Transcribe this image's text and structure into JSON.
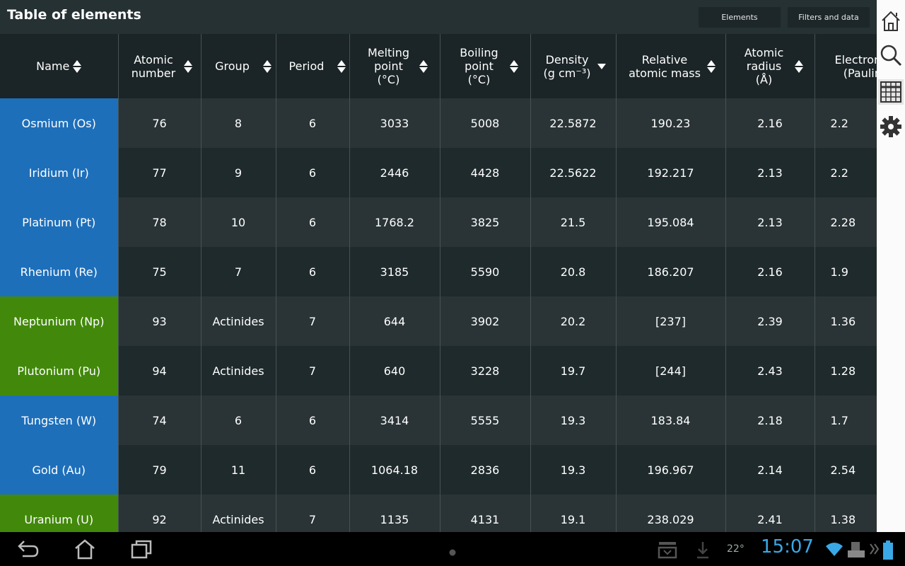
{
  "app": {
    "title": "Table of elements"
  },
  "toolbar": {
    "elements_label": "Elements",
    "filters_label": "Filters and data"
  },
  "side_icons": [
    "home-icon",
    "search-icon",
    "table-icon",
    "settings-icon"
  ],
  "table": {
    "columns": [
      {
        "label": "Name",
        "sort": "both"
      },
      {
        "label": "Atomic number",
        "sort": "both"
      },
      {
        "label": "Group",
        "sort": "both"
      },
      {
        "label": "Period",
        "sort": "both"
      },
      {
        "label": "Melting point (°C)",
        "sort": "both"
      },
      {
        "label": "Boiling point (°C)",
        "sort": "both"
      },
      {
        "label": "Density (g cm⁻³)",
        "sort": "desc"
      },
      {
        "label": "Relative atomic mass",
        "sort": "both"
      },
      {
        "label": "Atomic radius (Å)",
        "sort": "both"
      },
      {
        "label": "Electronegativity (Pauling)",
        "sort": "none"
      }
    ],
    "rows": [
      {
        "name": "Osmium (Os)",
        "category": "transition",
        "cells": [
          "76",
          "8",
          "6",
          "3033",
          "5008",
          "22.5872",
          "190.23",
          "2.16",
          "2.2"
        ]
      },
      {
        "name": "Iridium (Ir)",
        "category": "transition",
        "cells": [
          "77",
          "9",
          "6",
          "2446",
          "4428",
          "22.5622",
          "192.217",
          "2.13",
          "2.2"
        ]
      },
      {
        "name": "Platinum (Pt)",
        "category": "transition",
        "cells": [
          "78",
          "10",
          "6",
          "1768.2",
          "3825",
          "21.5",
          "195.084",
          "2.13",
          "2.28"
        ]
      },
      {
        "name": "Rhenium (Re)",
        "category": "transition",
        "cells": [
          "75",
          "7",
          "6",
          "3185",
          "5590",
          "20.8",
          "186.207",
          "2.16",
          "1.9"
        ]
      },
      {
        "name": "Neptunium (Np)",
        "category": "actinide",
        "cells": [
          "93",
          "Actinides",
          "7",
          "644",
          "3902",
          "20.2",
          "[237]",
          "2.39",
          "1.36"
        ]
      },
      {
        "name": "Plutonium (Pu)",
        "category": "actinide",
        "cells": [
          "94",
          "Actinides",
          "7",
          "640",
          "3228",
          "19.7",
          "[244]",
          "2.43",
          "1.28"
        ]
      },
      {
        "name": "Tungsten (W)",
        "category": "transition",
        "cells": [
          "74",
          "6",
          "6",
          "3414",
          "5555",
          "19.3",
          "183.84",
          "2.18",
          "1.7"
        ]
      },
      {
        "name": "Gold (Au)",
        "category": "transition",
        "cells": [
          "79",
          "11",
          "6",
          "1064.18",
          "2836",
          "19.3",
          "196.967",
          "2.14",
          "2.54"
        ]
      },
      {
        "name": "Uranium (U)",
        "category": "actinide",
        "cells": [
          "92",
          "Actinides",
          "7",
          "1135",
          "4131",
          "19.1",
          "238.029",
          "2.41",
          "1.38"
        ]
      }
    ]
  },
  "status": {
    "temperature": "22°",
    "clock": "15:07"
  },
  "colors": {
    "transition": "#1e6fba",
    "actinide": "#42890b",
    "clock": "#3aa8e6"
  }
}
